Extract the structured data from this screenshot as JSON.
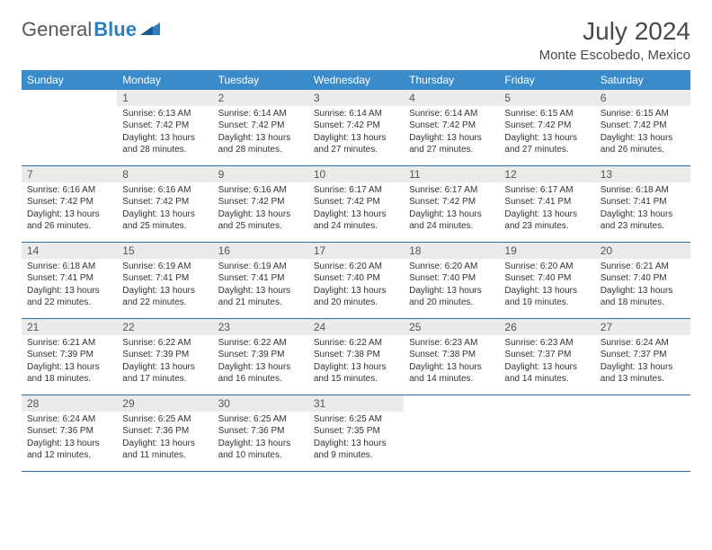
{
  "brand": {
    "part1": "General",
    "part2": "Blue"
  },
  "header": {
    "title": "July 2024",
    "location": "Monte Escobedo, Mexico"
  },
  "colors": {
    "header_bg": "#3a8bc9",
    "header_text": "#ffffff",
    "daynum_bg": "#ebebeb",
    "text": "#333333",
    "rule": "#2f6fa8",
    "brand_gray": "#58595b",
    "brand_blue": "#2f7fc1"
  },
  "weekdays": [
    "Sunday",
    "Monday",
    "Tuesday",
    "Wednesday",
    "Thursday",
    "Friday",
    "Saturday"
  ],
  "weeks": [
    [
      {
        "day": "",
        "sunrise": "",
        "sunset": "",
        "daylight": ""
      },
      {
        "day": "1",
        "sunrise": "Sunrise: 6:13 AM",
        "sunset": "Sunset: 7:42 PM",
        "daylight": "Daylight: 13 hours and 28 minutes."
      },
      {
        "day": "2",
        "sunrise": "Sunrise: 6:14 AM",
        "sunset": "Sunset: 7:42 PM",
        "daylight": "Daylight: 13 hours and 28 minutes."
      },
      {
        "day": "3",
        "sunrise": "Sunrise: 6:14 AM",
        "sunset": "Sunset: 7:42 PM",
        "daylight": "Daylight: 13 hours and 27 minutes."
      },
      {
        "day": "4",
        "sunrise": "Sunrise: 6:14 AM",
        "sunset": "Sunset: 7:42 PM",
        "daylight": "Daylight: 13 hours and 27 minutes."
      },
      {
        "day": "5",
        "sunrise": "Sunrise: 6:15 AM",
        "sunset": "Sunset: 7:42 PM",
        "daylight": "Daylight: 13 hours and 27 minutes."
      },
      {
        "day": "6",
        "sunrise": "Sunrise: 6:15 AM",
        "sunset": "Sunset: 7:42 PM",
        "daylight": "Daylight: 13 hours and 26 minutes."
      }
    ],
    [
      {
        "day": "7",
        "sunrise": "Sunrise: 6:16 AM",
        "sunset": "Sunset: 7:42 PM",
        "daylight": "Daylight: 13 hours and 26 minutes."
      },
      {
        "day": "8",
        "sunrise": "Sunrise: 6:16 AM",
        "sunset": "Sunset: 7:42 PM",
        "daylight": "Daylight: 13 hours and 25 minutes."
      },
      {
        "day": "9",
        "sunrise": "Sunrise: 6:16 AM",
        "sunset": "Sunset: 7:42 PM",
        "daylight": "Daylight: 13 hours and 25 minutes."
      },
      {
        "day": "10",
        "sunrise": "Sunrise: 6:17 AM",
        "sunset": "Sunset: 7:42 PM",
        "daylight": "Daylight: 13 hours and 24 minutes."
      },
      {
        "day": "11",
        "sunrise": "Sunrise: 6:17 AM",
        "sunset": "Sunset: 7:42 PM",
        "daylight": "Daylight: 13 hours and 24 minutes."
      },
      {
        "day": "12",
        "sunrise": "Sunrise: 6:17 AM",
        "sunset": "Sunset: 7:41 PM",
        "daylight": "Daylight: 13 hours and 23 minutes."
      },
      {
        "day": "13",
        "sunrise": "Sunrise: 6:18 AM",
        "sunset": "Sunset: 7:41 PM",
        "daylight": "Daylight: 13 hours and 23 minutes."
      }
    ],
    [
      {
        "day": "14",
        "sunrise": "Sunrise: 6:18 AM",
        "sunset": "Sunset: 7:41 PM",
        "daylight": "Daylight: 13 hours and 22 minutes."
      },
      {
        "day": "15",
        "sunrise": "Sunrise: 6:19 AM",
        "sunset": "Sunset: 7:41 PM",
        "daylight": "Daylight: 13 hours and 22 minutes."
      },
      {
        "day": "16",
        "sunrise": "Sunrise: 6:19 AM",
        "sunset": "Sunset: 7:41 PM",
        "daylight": "Daylight: 13 hours and 21 minutes."
      },
      {
        "day": "17",
        "sunrise": "Sunrise: 6:20 AM",
        "sunset": "Sunset: 7:40 PM",
        "daylight": "Daylight: 13 hours and 20 minutes."
      },
      {
        "day": "18",
        "sunrise": "Sunrise: 6:20 AM",
        "sunset": "Sunset: 7:40 PM",
        "daylight": "Daylight: 13 hours and 20 minutes."
      },
      {
        "day": "19",
        "sunrise": "Sunrise: 6:20 AM",
        "sunset": "Sunset: 7:40 PM",
        "daylight": "Daylight: 13 hours and 19 minutes."
      },
      {
        "day": "20",
        "sunrise": "Sunrise: 6:21 AM",
        "sunset": "Sunset: 7:40 PM",
        "daylight": "Daylight: 13 hours and 18 minutes."
      }
    ],
    [
      {
        "day": "21",
        "sunrise": "Sunrise: 6:21 AM",
        "sunset": "Sunset: 7:39 PM",
        "daylight": "Daylight: 13 hours and 18 minutes."
      },
      {
        "day": "22",
        "sunrise": "Sunrise: 6:22 AM",
        "sunset": "Sunset: 7:39 PM",
        "daylight": "Daylight: 13 hours and 17 minutes."
      },
      {
        "day": "23",
        "sunrise": "Sunrise: 6:22 AM",
        "sunset": "Sunset: 7:39 PM",
        "daylight": "Daylight: 13 hours and 16 minutes."
      },
      {
        "day": "24",
        "sunrise": "Sunrise: 6:22 AM",
        "sunset": "Sunset: 7:38 PM",
        "daylight": "Daylight: 13 hours and 15 minutes."
      },
      {
        "day": "25",
        "sunrise": "Sunrise: 6:23 AM",
        "sunset": "Sunset: 7:38 PM",
        "daylight": "Daylight: 13 hours and 14 minutes."
      },
      {
        "day": "26",
        "sunrise": "Sunrise: 6:23 AM",
        "sunset": "Sunset: 7:37 PM",
        "daylight": "Daylight: 13 hours and 14 minutes."
      },
      {
        "day": "27",
        "sunrise": "Sunrise: 6:24 AM",
        "sunset": "Sunset: 7:37 PM",
        "daylight": "Daylight: 13 hours and 13 minutes."
      }
    ],
    [
      {
        "day": "28",
        "sunrise": "Sunrise: 6:24 AM",
        "sunset": "Sunset: 7:36 PM",
        "daylight": "Daylight: 13 hours and 12 minutes."
      },
      {
        "day": "29",
        "sunrise": "Sunrise: 6:25 AM",
        "sunset": "Sunset: 7:36 PM",
        "daylight": "Daylight: 13 hours and 11 minutes."
      },
      {
        "day": "30",
        "sunrise": "Sunrise: 6:25 AM",
        "sunset": "Sunset: 7:36 PM",
        "daylight": "Daylight: 13 hours and 10 minutes."
      },
      {
        "day": "31",
        "sunrise": "Sunrise: 6:25 AM",
        "sunset": "Sunset: 7:35 PM",
        "daylight": "Daylight: 13 hours and 9 minutes."
      },
      {
        "day": "",
        "sunrise": "",
        "sunset": "",
        "daylight": ""
      },
      {
        "day": "",
        "sunrise": "",
        "sunset": "",
        "daylight": ""
      },
      {
        "day": "",
        "sunrise": "",
        "sunset": "",
        "daylight": ""
      }
    ]
  ]
}
